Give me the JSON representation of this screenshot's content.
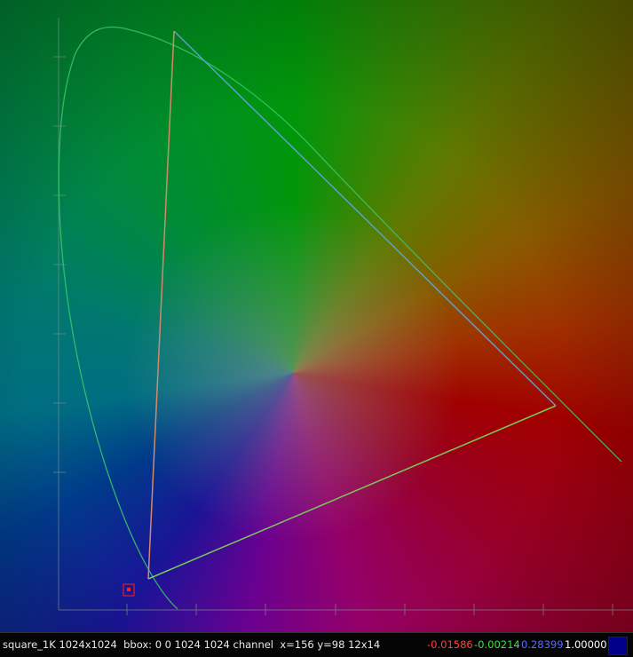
{
  "status_bar": {
    "image_info": "square_1K 1024x1024  bbox: 0 0 1024 1024 channel  x=156 y=98 12x14",
    "pixel_values": {
      "r": "-0.01586",
      "g": "-0.00214",
      "b": "0.28399",
      "a": "1.00000"
    }
  }
}
